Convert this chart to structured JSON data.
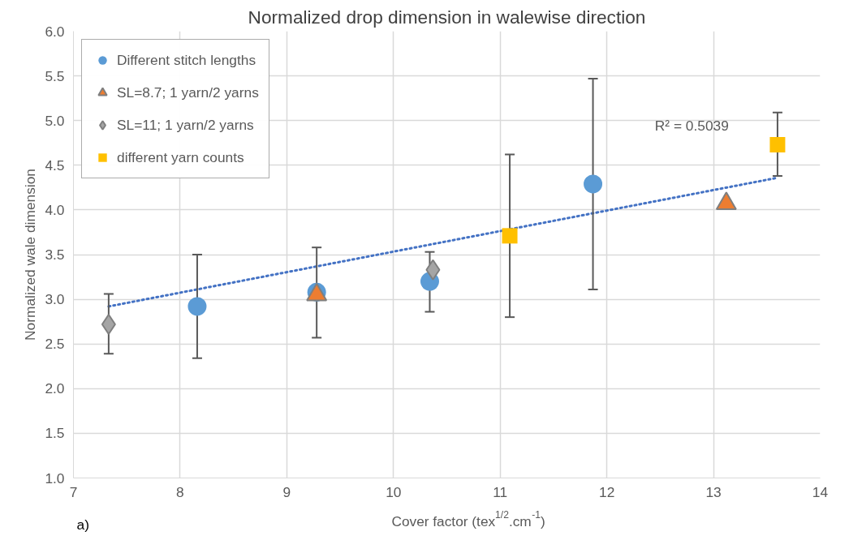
{
  "chart_data": {
    "type": "scatter",
    "title": "Normalized drop dimension in walewise direction",
    "xlabel": "Cover factor (tex$^{1/2}$.cm$^{-1}$)",
    "ylabel": "Normalized wale dimension",
    "xlim": [
      7,
      14
    ],
    "xticks": [
      7,
      8,
      9,
      10,
      11,
      12,
      13,
      14
    ],
    "ylim": [
      1.0,
      6.0
    ],
    "yticks": [
      {
        "value": 1.0,
        "label": "1.0"
      },
      {
        "value": 1.5,
        "label": "1.5"
      },
      {
        "value": 2.0,
        "label": "2.0"
      },
      {
        "value": 2.5,
        "label": "2.5"
      },
      {
        "value": 3.0,
        "label": "3.0"
      },
      {
        "value": 3.5,
        "label": "3.5"
      },
      {
        "value": 4.0,
        "label": "4.0"
      },
      {
        "value": 4.5,
        "label": "4.5"
      },
      {
        "value": 5.0,
        "label": "5.0"
      },
      {
        "value": 5.5,
        "label": "5.5"
      },
      {
        "value": 6.0,
        "label": "6.0"
      }
    ],
    "grid": true,
    "legend": "top left",
    "series": [
      {
        "type": "line",
        "color": "#4472c4",
        "line_style": "dotted",
        "marker": "none",
        "x": [
          7.33,
          13.6
        ],
        "values": [
          2.92,
          4.36
        ]
      },
      {
        "name": "Different stitch lengths",
        "color": "#5b9bd5",
        "marker": "circle",
        "x": [
          8.16,
          9.28,
          10.34,
          11.87
        ],
        "values": [
          2.92,
          3.08,
          3.2,
          4.29
        ],
        "errors": [
          [
            2.34,
            3.5
          ],
          [
            2.57,
            3.58
          ],
          [
            2.86,
            3.53
          ],
          [
            3.11,
            5.47
          ]
        ]
      },
      {
        "name": "SL=8.7; 1 yarn/2 yarns",
        "color": "#ed7d31",
        "marker": "triangle",
        "x": [
          9.28,
          13.12
        ],
        "values": [
          3.05,
          4.07
        ]
      },
      {
        "name": "SL=11; 1 yarn/2 yarns",
        "color": "#a5a5a5",
        "marker": "diamond",
        "x": [
          7.33,
          10.37
        ],
        "values": [
          2.72,
          3.33
        ],
        "errors": [
          [
            2.39,
            3.06
          ],
          null
        ]
      },
      {
        "name": "different yarn counts",
        "color": "#ffc000",
        "marker": "square",
        "x": [
          11.09,
          13.6
        ],
        "values": [
          3.71,
          4.73
        ],
        "errors": [
          [
            2.8,
            4.62
          ],
          [
            4.38,
            5.09
          ]
        ]
      }
    ],
    "annotations": [
      "R² = 0.5039",
      "a)"
    ]
  }
}
